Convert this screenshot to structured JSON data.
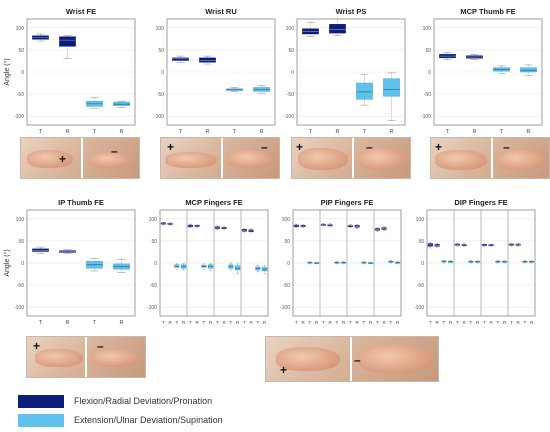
{
  "colors": {
    "flexion": "#0b1f7a",
    "extension": "#5ec2ea",
    "median_dark": "#6f86d8",
    "median_light": "#2c6aa8",
    "grid": "#e6e6e6",
    "axis": "#888888"
  },
  "ylabel": "Angle (°)",
  "signs": {
    "plus": "+",
    "minus": "–"
  },
  "legend": [
    {
      "label": "Flexion/Radial Deviation/Pronation",
      "color": "#0b1f7a"
    },
    {
      "label": "Extension/Ulnar Deviation/Supination",
      "color": "#5ec2ea"
    }
  ],
  "chart_data": [
    {
      "type": "box",
      "title": "Wrist FE",
      "ylim": [
        -120,
        120
      ],
      "yticks": [
        -100,
        -50,
        0,
        50,
        100
      ],
      "categories": [
        "T",
        "R",
        "T",
        "R"
      ],
      "boxes": [
        {
          "cat": 0,
          "series": "flexion",
          "min": 70,
          "q1": 74,
          "median": 78,
          "q3": 82,
          "max": 86
        },
        {
          "cat": 1,
          "series": "flexion",
          "min": 30,
          "q1": 58,
          "median": 72,
          "q3": 80,
          "max": 82
        },
        {
          "cat": 2,
          "series": "extension",
          "min": -82,
          "q1": -78,
          "median": -72,
          "q3": -66,
          "max": -58
        },
        {
          "cat": 3,
          "series": "extension",
          "min": -80,
          "q1": -76,
          "median": -73,
          "q3": -68,
          "max": -66
        }
      ]
    },
    {
      "type": "box",
      "title": "Wrist RU",
      "ylim": [
        -120,
        120
      ],
      "yticks": [
        -100,
        -50,
        0,
        50,
        100
      ],
      "categories": [
        "T",
        "R",
        "T",
        "R"
      ],
      "boxes": [
        {
          "cat": 0,
          "series": "flexion",
          "min": 22,
          "q1": 26,
          "median": 30,
          "q3": 32,
          "max": 36
        },
        {
          "cat": 1,
          "series": "flexion",
          "min": 18,
          "q1": 22,
          "median": 26,
          "q3": 32,
          "max": 36
        },
        {
          "cat": 2,
          "series": "extension",
          "min": -44,
          "q1": -42,
          "median": -40,
          "q3": -38,
          "max": -35
        },
        {
          "cat": 3,
          "series": "extension",
          "min": -48,
          "q1": -44,
          "median": -40,
          "q3": -35,
          "max": -30
        }
      ]
    },
    {
      "type": "box",
      "title": "Wrist PS",
      "ylim": [
        -120,
        120
      ],
      "yticks": [
        -100,
        -50,
        0,
        50,
        100
      ],
      "categories": [
        "T",
        "R",
        "T",
        "R"
      ],
      "boxes": [
        {
          "cat": 0,
          "series": "flexion",
          "min": 80,
          "q1": 86,
          "median": 92,
          "q3": 98,
          "max": 112
        },
        {
          "cat": 1,
          "series": "flexion",
          "min": 82,
          "q1": 88,
          "median": 96,
          "q3": 108,
          "max": 120
        },
        {
          "cat": 2,
          "series": "extension",
          "min": -75,
          "q1": -62,
          "median": -45,
          "q3": -25,
          "max": -5
        },
        {
          "cat": 3,
          "series": "extension",
          "min": -110,
          "q1": -55,
          "median": -40,
          "q3": -15,
          "max": -2
        }
      ]
    },
    {
      "type": "box",
      "title": "MCP Thumb FE",
      "ylim": [
        -120,
        120
      ],
      "yticks": [
        -100,
        -50,
        0,
        50,
        100
      ],
      "categories": [
        "T",
        "R",
        "T",
        "R"
      ],
      "boxes": [
        {
          "cat": 0,
          "series": "flexion",
          "min": 28,
          "q1": 32,
          "median": 36,
          "q3": 40,
          "max": 44
        },
        {
          "cat": 1,
          "series": "flexion",
          "min": 28,
          "q1": 31,
          "median": 34,
          "q3": 37,
          "max": 40
        },
        {
          "cat": 2,
          "series": "extension",
          "min": -4,
          "q1": 2,
          "median": 6,
          "q3": 10,
          "max": 14
        },
        {
          "cat": 3,
          "series": "extension",
          "min": -8,
          "q1": 0,
          "median": 4,
          "q3": 10,
          "max": 16
        }
      ]
    },
    {
      "type": "box",
      "title": "IP Thumb FE",
      "ylim": [
        -120,
        120
      ],
      "yticks": [
        -100,
        -50,
        0,
        50,
        100
      ],
      "categories": [
        "T",
        "R",
        "T",
        "R"
      ],
      "boxes": [
        {
          "cat": 0,
          "series": "flexion",
          "min": 22,
          "q1": 26,
          "median": 28,
          "q3": 32,
          "max": 36
        },
        {
          "cat": 1,
          "series": "flexion",
          "min": 22,
          "q1": 24,
          "median": 26,
          "q3": 28,
          "max": 30
        },
        {
          "cat": 2,
          "series": "extension",
          "min": -18,
          "q1": -12,
          "median": -4,
          "q3": 4,
          "max": 10
        },
        {
          "cat": 3,
          "series": "extension",
          "min": -22,
          "q1": -14,
          "median": -8,
          "q3": -2,
          "max": 8
        }
      ]
    },
    {
      "type": "box",
      "title": "MCP Fingers FE",
      "ylim": [
        -120,
        120
      ],
      "yticks": [
        -100,
        -50,
        0,
        50,
        100
      ],
      "categories": [
        "T",
        "R",
        "T",
        "R",
        "T",
        "R",
        "T",
        "R",
        "T",
        "R",
        "T",
        "R",
        "T",
        "R",
        "T",
        "R"
      ],
      "separators": [
        4,
        8,
        12
      ],
      "boxes": [
        {
          "cat": 0,
          "series": "flexion",
          "min": 86,
          "q1": 88,
          "median": 90,
          "q3": 91,
          "max": 92
        },
        {
          "cat": 1,
          "series": "flexion",
          "min": 86,
          "q1": 88,
          "median": 89,
          "q3": 90,
          "max": 92
        },
        {
          "cat": 2,
          "series": "extension",
          "min": -14,
          "q1": -10,
          "median": -8,
          "q3": -4,
          "max": -2
        },
        {
          "cat": 3,
          "series": "extension",
          "min": -16,
          "q1": -12,
          "median": -8,
          "q3": -4,
          "max": -1
        },
        {
          "cat": 4,
          "series": "flexion",
          "min": 80,
          "q1": 82,
          "median": 84,
          "q3": 86,
          "max": 88
        },
        {
          "cat": 5,
          "series": "flexion",
          "min": 80,
          "q1": 82,
          "median": 83,
          "q3": 85,
          "max": 86
        },
        {
          "cat": 6,
          "series": "extension",
          "min": -14,
          "q1": -10,
          "median": -8,
          "q3": -5,
          "max": -2
        },
        {
          "cat": 7,
          "series": "extension",
          "min": -18,
          "q1": -12,
          "median": -8,
          "q3": -4,
          "max": -2
        },
        {
          "cat": 8,
          "series": "flexion",
          "min": 76,
          "q1": 78,
          "median": 80,
          "q3": 82,
          "max": 84
        },
        {
          "cat": 9,
          "series": "flexion",
          "min": 76,
          "q1": 78,
          "median": 80,
          "q3": 81,
          "max": 83
        },
        {
          "cat": 10,
          "series": "extension",
          "min": -16,
          "q1": -12,
          "median": -8,
          "q3": -4,
          "max": 0
        },
        {
          "cat": 11,
          "series": "extension",
          "min": -24,
          "q1": -16,
          "median": -12,
          "q3": -6,
          "max": -2
        },
        {
          "cat": 12,
          "series": "flexion",
          "min": 70,
          "q1": 72,
          "median": 74,
          "q3": 76,
          "max": 78
        },
        {
          "cat": 13,
          "series": "flexion",
          "min": 70,
          "q1": 71,
          "median": 73,
          "q3": 75,
          "max": 77
        },
        {
          "cat": 14,
          "series": "extension",
          "min": -20,
          "q1": -16,
          "median": -12,
          "q3": -9,
          "max": -6
        },
        {
          "cat": 15,
          "series": "extension",
          "min": -24,
          "q1": -18,
          "median": -14,
          "q3": -10,
          "max": -6
        }
      ]
    },
    {
      "type": "box",
      "title": "PIP Fingers FE",
      "ylim": [
        -120,
        120
      ],
      "yticks": [
        -100,
        -50,
        0,
        50,
        100
      ],
      "categories": [
        "T",
        "R",
        "T",
        "R",
        "T",
        "R",
        "T",
        "R",
        "T",
        "R",
        "T",
        "R",
        "T",
        "R",
        "T",
        "R"
      ],
      "separators": [
        4,
        8,
        12
      ],
      "boxes": [
        {
          "cat": 0,
          "series": "flexion",
          "min": 80,
          "q1": 82,
          "median": 84,
          "q3": 86,
          "max": 88
        },
        {
          "cat": 1,
          "series": "flexion",
          "min": 80,
          "q1": 82,
          "median": 83,
          "q3": 85,
          "max": 87
        },
        {
          "cat": 2,
          "series": "extension",
          "min": -2,
          "q1": 0,
          "median": 1,
          "q3": 2,
          "max": 3
        },
        {
          "cat": 3,
          "series": "extension",
          "min": -2,
          "q1": -1,
          "median": 0,
          "q3": 1,
          "max": 2
        },
        {
          "cat": 4,
          "series": "flexion",
          "min": 84,
          "q1": 86,
          "median": 87,
          "q3": 88,
          "max": 90
        },
        {
          "cat": 5,
          "series": "flexion",
          "min": 82,
          "q1": 84,
          "median": 86,
          "q3": 87,
          "max": 89
        },
        {
          "cat": 6,
          "series": "extension",
          "min": -2,
          "q1": 0,
          "median": 1,
          "q3": 2,
          "max": 4
        },
        {
          "cat": 7,
          "series": "extension",
          "min": -2,
          "q1": 0,
          "median": 1,
          "q3": 2,
          "max": 3
        },
        {
          "cat": 8,
          "series": "flexion",
          "min": 80,
          "q1": 82,
          "median": 84,
          "q3": 85,
          "max": 87
        },
        {
          "cat": 9,
          "series": "flexion",
          "min": 78,
          "q1": 81,
          "median": 83,
          "q3": 85,
          "max": 87
        },
        {
          "cat": 10,
          "series": "extension",
          "min": -2,
          "q1": 0,
          "median": 1,
          "q3": 2,
          "max": 3
        },
        {
          "cat": 11,
          "series": "extension",
          "min": -2,
          "q1": 0,
          "median": 0,
          "q3": 1,
          "max": 2
        },
        {
          "cat": 12,
          "series": "flexion",
          "min": 72,
          "q1": 74,
          "median": 76,
          "q3": 78,
          "max": 80
        },
        {
          "cat": 13,
          "series": "flexion",
          "min": 74,
          "q1": 76,
          "median": 78,
          "q3": 80,
          "max": 82
        },
        {
          "cat": 14,
          "series": "extension",
          "min": 0,
          "q1": 2,
          "median": 3,
          "q3": 4,
          "max": 6
        },
        {
          "cat": 15,
          "series": "extension",
          "min": -2,
          "q1": 0,
          "median": 1,
          "q3": 2,
          "max": 4
        }
      ]
    },
    {
      "type": "box",
      "title": "DIP Fingers FE",
      "ylim": [
        -120,
        120
      ],
      "yticks": [
        -100,
        -50,
        0,
        50,
        100
      ],
      "categories": [
        "T",
        "R",
        "T",
        "R",
        "T",
        "R",
        "T",
        "R",
        "T",
        "R",
        "T",
        "R",
        "T",
        "R",
        "T",
        "R"
      ],
      "separators": [
        4,
        8,
        12
      ],
      "boxes": [
        {
          "cat": 0,
          "series": "flexion",
          "min": 34,
          "q1": 38,
          "median": 41,
          "q3": 44,
          "max": 46
        },
        {
          "cat": 1,
          "series": "flexion",
          "min": 36,
          "q1": 38,
          "median": 40,
          "q3": 42,
          "max": 44
        },
        {
          "cat": 2,
          "series": "extension",
          "min": 0,
          "q1": 2,
          "median": 3,
          "q3": 5,
          "max": 6
        },
        {
          "cat": 3,
          "series": "extension",
          "min": 0,
          "q1": 2,
          "median": 3,
          "q3": 4,
          "max": 6
        },
        {
          "cat": 4,
          "series": "flexion",
          "min": 38,
          "q1": 40,
          "median": 41,
          "q3": 43,
          "max": 44
        },
        {
          "cat": 5,
          "series": "flexion",
          "min": 38,
          "q1": 40,
          "median": 41,
          "q3": 42,
          "max": 44
        },
        {
          "cat": 6,
          "series": "extension",
          "min": 0,
          "q1": 2,
          "median": 3,
          "q3": 4,
          "max": 6
        },
        {
          "cat": 7,
          "series": "extension",
          "min": 0,
          "q1": 2,
          "median": 3,
          "q3": 4,
          "max": 5
        },
        {
          "cat": 8,
          "series": "flexion",
          "min": 37,
          "q1": 39,
          "median": 40,
          "q3": 42,
          "max": 43
        },
        {
          "cat": 9,
          "series": "flexion",
          "min": 38,
          "q1": 40,
          "median": 41,
          "q3": 42,
          "max": 43
        },
        {
          "cat": 10,
          "series": "extension",
          "min": 0,
          "q1": 2,
          "median": 3,
          "q3": 4,
          "max": 6
        },
        {
          "cat": 11,
          "series": "extension",
          "min": 0,
          "q1": 2,
          "median": 3,
          "q3": 4,
          "max": 5
        },
        {
          "cat": 12,
          "series": "flexion",
          "min": 38,
          "q1": 40,
          "median": 41,
          "q3": 43,
          "max": 44
        },
        {
          "cat": 13,
          "series": "flexion",
          "min": 38,
          "q1": 40,
          "median": 42,
          "q3": 43,
          "max": 45
        },
        {
          "cat": 14,
          "series": "extension",
          "min": 0,
          "q1": 2,
          "median": 3,
          "q3": 4,
          "max": 6
        },
        {
          "cat": 15,
          "series": "extension",
          "min": 0,
          "q1": 2,
          "median": 3,
          "q3": 4,
          "max": 5
        }
      ]
    }
  ]
}
